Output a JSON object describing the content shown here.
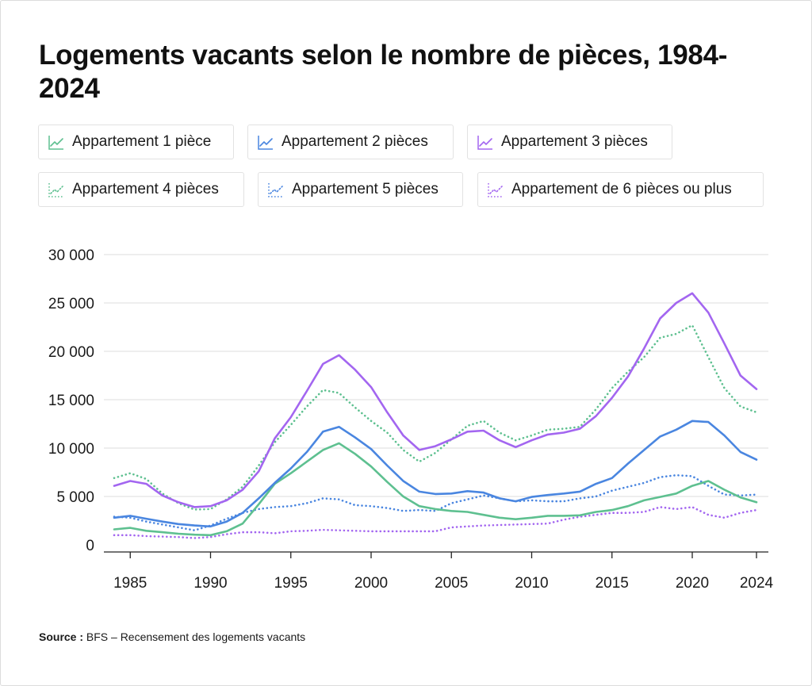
{
  "title": "Logements vacants selon le nombre de pièces, 1984-2024",
  "legend": [
    {
      "label": "Appartement 1 pièce",
      "color": "#5ec090",
      "dashed": false,
      "icon": "line-chart-icon"
    },
    {
      "label": "Appartement 2 pièces",
      "color": "#4a86e0",
      "dashed": false,
      "icon": "line-chart-icon"
    },
    {
      "label": "Appartement 3 pièces",
      "color": "#a366f0",
      "dashed": false,
      "icon": "line-chart-icon"
    },
    {
      "label": "Appartement 4 pièces",
      "color": "#5ec090",
      "dashed": true,
      "icon": "dotted-line-chart-icon"
    },
    {
      "label": "Appartement 5 pièces",
      "color": "#4a86e0",
      "dashed": true,
      "icon": "dotted-line-chart-icon"
    },
    {
      "label": "Appartement de 6 pièces ou plus",
      "color": "#a366f0",
      "dashed": true,
      "icon": "dotted-line-chart-icon"
    }
  ],
  "source": {
    "label": "Source :",
    "text": "BFS – Recensement des logements vacants"
  },
  "chart_data": {
    "type": "line",
    "title": "Logements vacants selon le nombre de pièces, 1984-2024",
    "xlabel": "",
    "ylabel": "",
    "x": [
      1984,
      1985,
      1986,
      1987,
      1988,
      1989,
      1990,
      1991,
      1992,
      1993,
      1994,
      1995,
      1996,
      1997,
      1998,
      1999,
      2000,
      2001,
      2002,
      2003,
      2004,
      2005,
      2006,
      2007,
      2008,
      2009,
      2010,
      2011,
      2012,
      2013,
      2014,
      2015,
      2016,
      2017,
      2018,
      2019,
      2020,
      2021,
      2022,
      2023,
      2024
    ],
    "xticks": [
      1985,
      1990,
      1995,
      2000,
      2005,
      2010,
      2015,
      2020,
      2024
    ],
    "ylim": [
      0,
      30000
    ],
    "yticks": [
      0,
      5000,
      10000,
      15000,
      20000,
      25000,
      30000
    ],
    "ytick_labels": [
      "0",
      "5 000",
      "10 000",
      "15 000",
      "20 000",
      "25 000",
      "30 000"
    ],
    "grid": true,
    "series": [
      {
        "name": "Appartement 1 pièce",
        "color": "#5ec090",
        "dashed": false,
        "values": [
          1600,
          1750,
          1450,
          1300,
          1150,
          1050,
          1000,
          1400,
          2200,
          4200,
          6300,
          7400,
          8600,
          9800,
          10500,
          9400,
          8100,
          6500,
          5000,
          4000,
          3700,
          3500,
          3400,
          3100,
          2800,
          2650,
          2800,
          3000,
          3000,
          3050,
          3400,
          3600,
          4000,
          4600,
          4950,
          5300,
          6100,
          6600,
          5700,
          4900,
          4400
        ]
      },
      {
        "name": "Appartement 2 pièces",
        "color": "#4a86e0",
        "dashed": false,
        "values": [
          2800,
          3000,
          2700,
          2400,
          2150,
          2000,
          1900,
          2400,
          3300,
          4800,
          6400,
          7900,
          9600,
          11700,
          12200,
          11100,
          9900,
          8200,
          6600,
          5500,
          5250,
          5300,
          5550,
          5400,
          4800,
          4500,
          4950,
          5150,
          5300,
          5500,
          6300,
          6900,
          8400,
          9800,
          11200,
          11900,
          12800,
          12700,
          11300,
          9600,
          8800
        ]
      },
      {
        "name": "Appartement 3 pièces",
        "color": "#a366f0",
        "dashed": false,
        "values": [
          6100,
          6600,
          6300,
          5100,
          4400,
          3900,
          4000,
          4600,
          5700,
          7600,
          11000,
          13200,
          15900,
          18700,
          19600,
          18100,
          16300,
          13700,
          11300,
          9800,
          10200,
          10900,
          11700,
          11800,
          10800,
          10100,
          10800,
          11400,
          11600,
          12000,
          13300,
          15200,
          17400,
          20300,
          23400,
          25000,
          26000,
          24000,
          20800,
          17500,
          16100
        ]
      },
      {
        "name": "Appartement 4 pièces",
        "color": "#5ec090",
        "dashed": true,
        "values": [
          6900,
          7400,
          6800,
          5300,
          4300,
          3650,
          3700,
          4700,
          6000,
          8200,
          10600,
          12400,
          14300,
          16000,
          15700,
          14200,
          12800,
          11600,
          9800,
          8600,
          9500,
          10900,
          12300,
          12800,
          11600,
          10800,
          11300,
          11900,
          12000,
          12200,
          14000,
          16200,
          17900,
          19400,
          21400,
          21800,
          22700,
          19400,
          16200,
          14300,
          13700
        ]
      },
      {
        "name": "Appartement 5 pièces",
        "color": "#4a86e0",
        "dashed": true,
        "values": [
          2900,
          2800,
          2400,
          2100,
          1800,
          1500,
          2000,
          2700,
          3300,
          3700,
          3900,
          4000,
          4300,
          4800,
          4700,
          4100,
          4000,
          3800,
          3500,
          3600,
          3500,
          4300,
          4700,
          5100,
          4800,
          4500,
          4600,
          4500,
          4500,
          4800,
          5000,
          5600,
          6000,
          6400,
          7000,
          7200,
          7100,
          6100,
          5200,
          5100,
          5200
        ]
      },
      {
        "name": "Appartement de 6 pièces ou plus",
        "color": "#a366f0",
        "dashed": true,
        "values": [
          1000,
          1000,
          900,
          850,
          800,
          700,
          800,
          1100,
          1300,
          1300,
          1200,
          1400,
          1450,
          1550,
          1500,
          1450,
          1400,
          1400,
          1400,
          1400,
          1400,
          1800,
          1900,
          2000,
          2050,
          2100,
          2150,
          2200,
          2600,
          2900,
          3100,
          3300,
          3300,
          3400,
          3900,
          3700,
          3900,
          3100,
          2800,
          3300,
          3600
        ]
      }
    ]
  }
}
